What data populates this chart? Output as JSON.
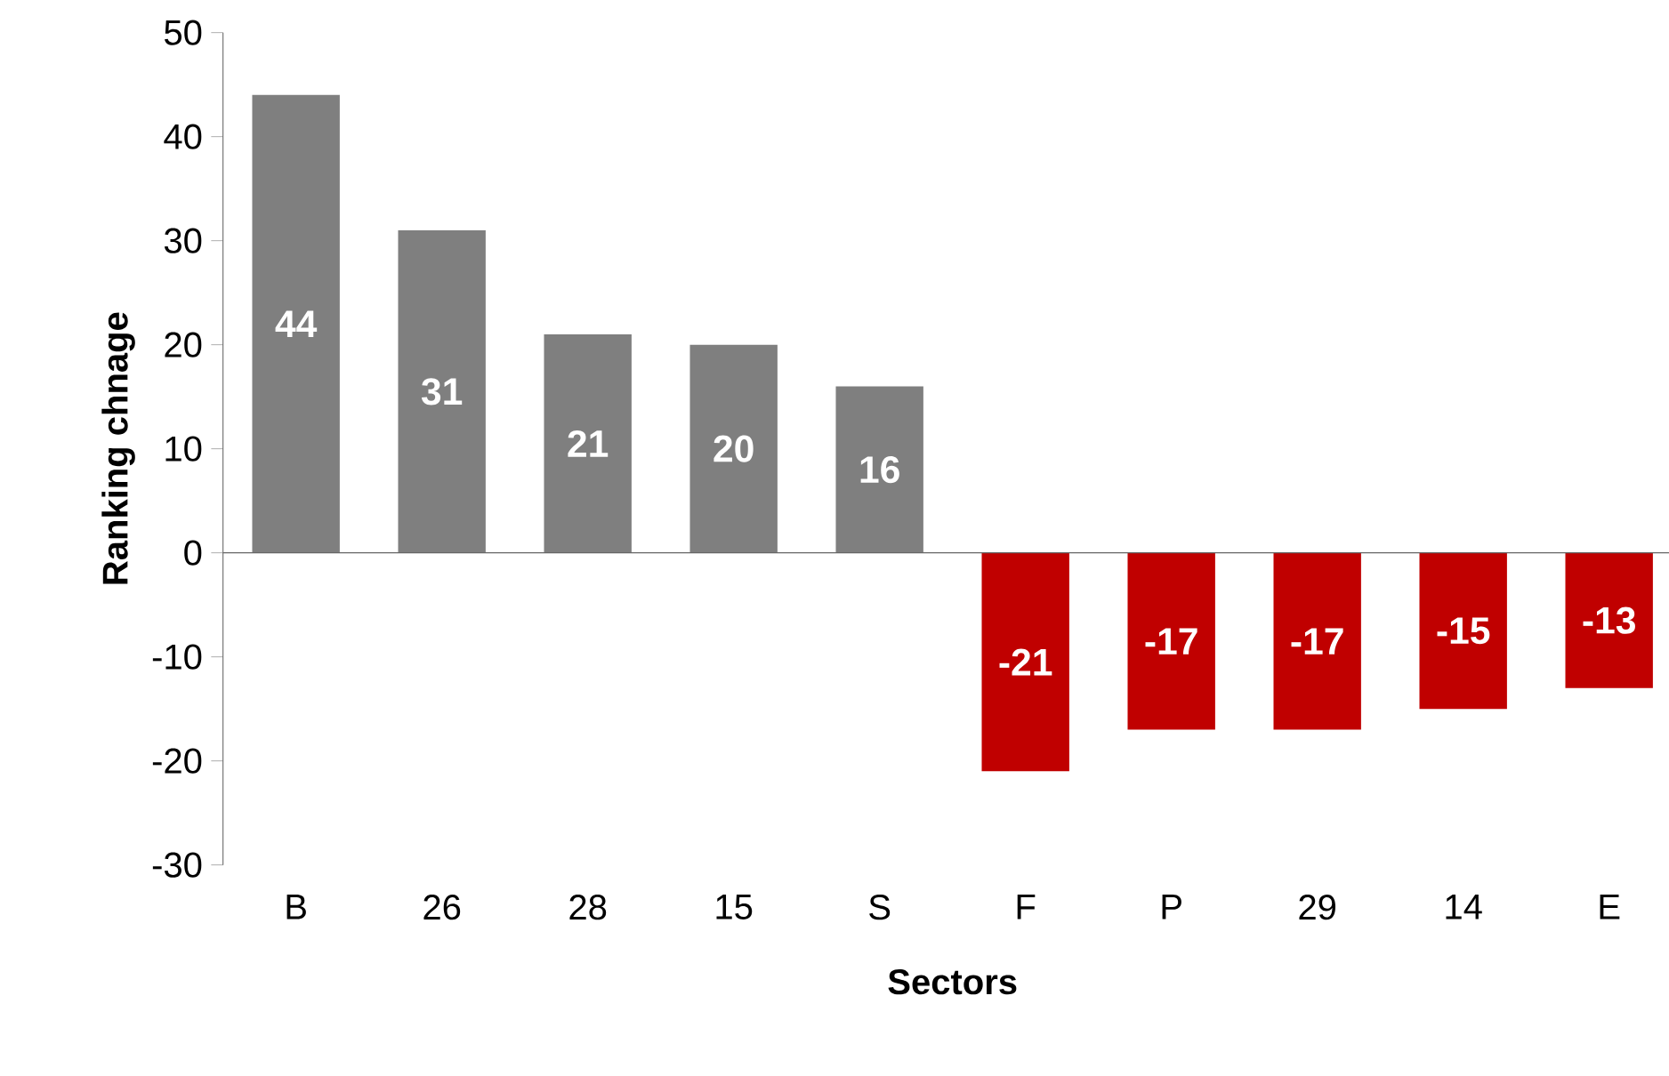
{
  "chart_data": {
    "type": "bar",
    "xlabel": "Sectors",
    "ylabel": "Ranking chnage",
    "categories": [
      "B",
      "26",
      "28",
      "15",
      "S",
      "F",
      "P",
      "29",
      "14",
      "E"
    ],
    "values": [
      44,
      31,
      21,
      20,
      16,
      -21,
      -17,
      -17,
      -15,
      -13
    ],
    "colors": [
      "#7f7f7f",
      "#7f7f7f",
      "#7f7f7f",
      "#7f7f7f",
      "#7f7f7f",
      "#c00000",
      "#c00000",
      "#c00000",
      "#c00000",
      "#c00000"
    ],
    "ylim": [
      -30,
      50
    ],
    "yticks": [
      -30,
      -20,
      -10,
      0,
      10,
      20,
      30,
      40,
      50
    ],
    "data_labels": true
  }
}
